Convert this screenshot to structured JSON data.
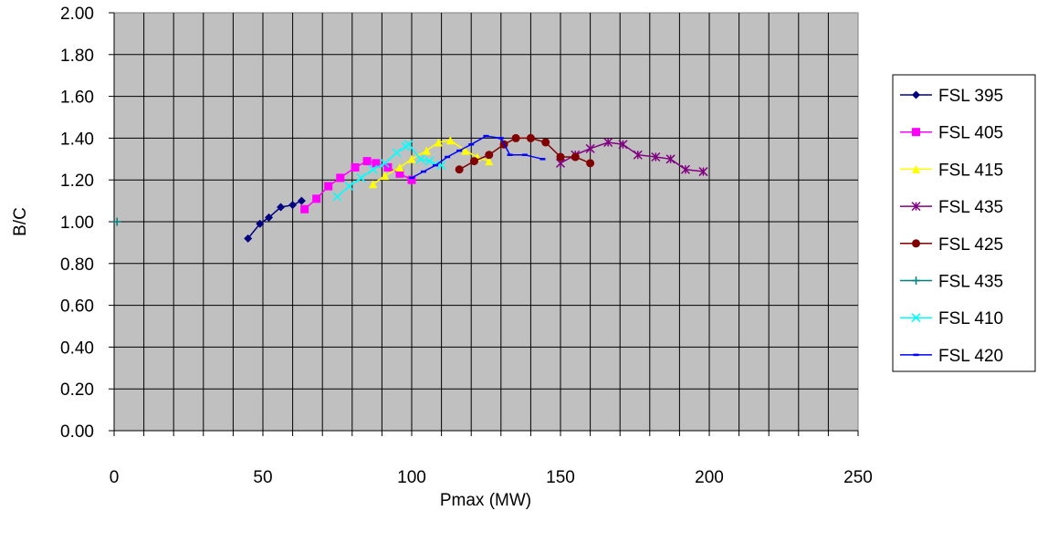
{
  "chart_data": {
    "type": "line",
    "title": "",
    "xlabel": "Pmax (MW)",
    "ylabel": "B/C",
    "xlim": [
      0,
      250
    ],
    "ylim": [
      0,
      2
    ],
    "x_ticks": [
      "0",
      "50",
      "100",
      "150",
      "200",
      "250"
    ],
    "y_ticks": [
      "0.00",
      "0.20",
      "0.40",
      "0.60",
      "0.80",
      "1.00",
      "1.20",
      "1.40",
      "1.60",
      "1.80",
      "2.00"
    ],
    "grid": true,
    "plot_background": "#c0c0c0",
    "legend_placement": "right",
    "series": [
      {
        "name": "FSL 395",
        "color": "#000080",
        "marker": "diamond",
        "points": [
          [
            45,
            0.92
          ],
          [
            49,
            0.99
          ],
          [
            52,
            1.02
          ],
          [
            56,
            1.07
          ],
          [
            60,
            1.08
          ],
          [
            63,
            1.1
          ]
        ]
      },
      {
        "name": "FSL 405",
        "color": "#ff00ff",
        "marker": "square",
        "points": [
          [
            64,
            1.06
          ],
          [
            68,
            1.11
          ],
          [
            72,
            1.17
          ],
          [
            76,
            1.21
          ],
          [
            81,
            1.26
          ],
          [
            85,
            1.29
          ],
          [
            88,
            1.28
          ],
          [
            92,
            1.26
          ],
          [
            96,
            1.23
          ],
          [
            100,
            1.2
          ]
        ]
      },
      {
        "name": "FSL 415",
        "color": "#ffff00",
        "marker": "triangle",
        "points": [
          [
            87,
            1.18
          ],
          [
            91,
            1.22
          ],
          [
            96,
            1.26
          ],
          [
            100,
            1.3
          ],
          [
            105,
            1.34
          ],
          [
            109,
            1.38
          ],
          [
            113,
            1.39
          ],
          [
            118,
            1.34
          ],
          [
            122,
            1.31
          ],
          [
            126,
            1.29
          ]
        ]
      },
      {
        "name": "FSL 435",
        "color": "#800080",
        "marker": "star",
        "points": [
          [
            150,
            1.28
          ],
          [
            155,
            1.32
          ],
          [
            160,
            1.35
          ],
          [
            166,
            1.38
          ],
          [
            171,
            1.37
          ],
          [
            176,
            1.32
          ],
          [
            182,
            1.31
          ],
          [
            187,
            1.3
          ],
          [
            192,
            1.25
          ],
          [
            198,
            1.24
          ]
        ]
      },
      {
        "name": "FSL 425",
        "color": "#800000",
        "marker": "circle",
        "points": [
          [
            116,
            1.25
          ],
          [
            121,
            1.29
          ],
          [
            126,
            1.32
          ],
          [
            131,
            1.37
          ],
          [
            135,
            1.4
          ],
          [
            140,
            1.4
          ],
          [
            145,
            1.38
          ],
          [
            150,
            1.31
          ],
          [
            155,
            1.31
          ],
          [
            160,
            1.28
          ]
        ]
      },
      {
        "name": "FSL 435",
        "color": "#008080",
        "marker": "plus",
        "points": [
          [
            1,
            1.0
          ]
        ]
      },
      {
        "name": "FSL 410",
        "color": "#00ffff",
        "marker": "x",
        "points": [
          [
            75,
            1.12
          ],
          [
            79,
            1.17
          ],
          [
            83,
            1.21
          ],
          [
            87,
            1.25
          ],
          [
            91,
            1.28
          ],
          [
            95,
            1.33
          ],
          [
            98,
            1.36
          ],
          [
            99,
            1.37
          ],
          [
            103,
            1.3
          ],
          [
            106,
            1.29
          ],
          [
            110,
            1.27
          ]
        ]
      },
      {
        "name": "FSL 420",
        "color": "#0000ff",
        "marker": "dash",
        "points": [
          [
            100,
            1.21
          ],
          [
            104,
            1.24
          ],
          [
            108,
            1.27
          ],
          [
            112,
            1.31
          ],
          [
            116,
            1.34
          ],
          [
            120,
            1.37
          ],
          [
            125,
            1.41
          ],
          [
            130,
            1.4
          ],
          [
            133,
            1.32
          ],
          [
            138,
            1.32
          ],
          [
            144,
            1.3
          ]
        ]
      }
    ]
  }
}
